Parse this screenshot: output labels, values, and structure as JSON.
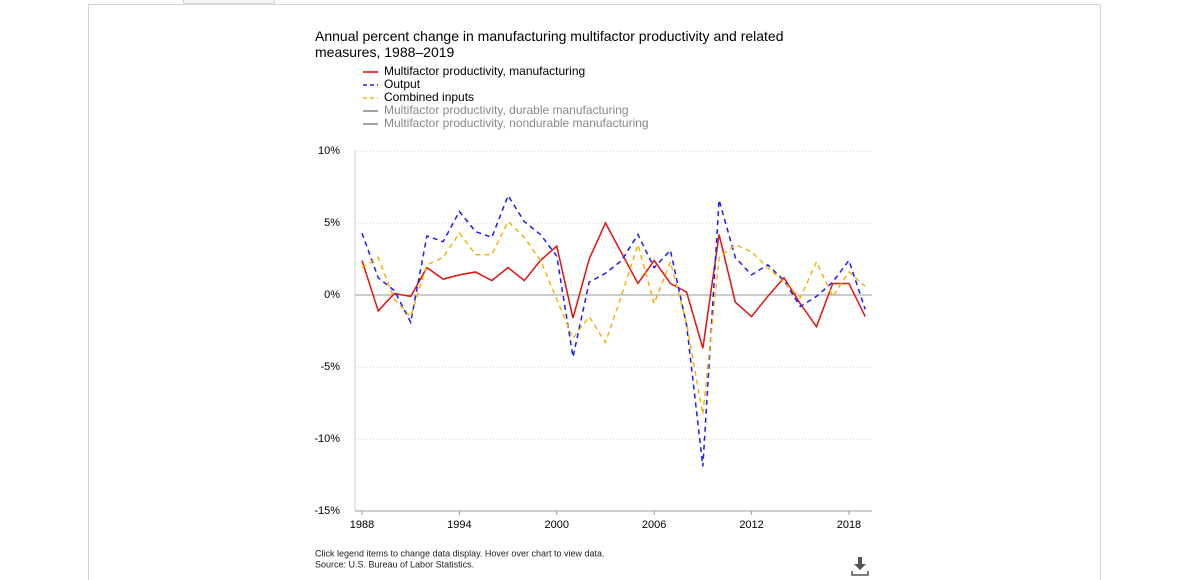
{
  "chart_data": {
    "type": "line",
    "title": "Annual percent change in manufacturing multifactor productivity and related measures, 1988–2019",
    "x": [
      1988,
      1989,
      1990,
      1991,
      1992,
      1993,
      1994,
      1995,
      1996,
      1997,
      1998,
      1999,
      2000,
      2001,
      2002,
      2003,
      2004,
      2005,
      2006,
      2007,
      2008,
      2009,
      2010,
      2011,
      2012,
      2013,
      2014,
      2015,
      2016,
      2017,
      2018,
      2019
    ],
    "series": [
      {
        "name": "Multifactor productivity, manufacturing",
        "color": "#e3120b",
        "dashed": false,
        "visible": true,
        "values": [
          2.4,
          -1.1,
          0.1,
          -0.1,
          1.9,
          1.1,
          1.4,
          1.6,
          1.0,
          1.9,
          1.0,
          2.4,
          3.4,
          -1.6,
          2.5,
          5.0,
          2.9,
          0.8,
          2.4,
          0.8,
          0.2,
          -3.7,
          4.2,
          -0.5,
          -1.5,
          -0.1,
          1.2,
          -0.6,
          -2.2,
          0.8,
          0.8,
          -1.5
        ]
      },
      {
        "name": "Output",
        "color": "#1a1aff",
        "dashed": true,
        "visible": true,
        "values": [
          4.3,
          1.2,
          0.3,
          -1.9,
          4.1,
          3.7,
          5.8,
          4.4,
          4.0,
          6.9,
          5.1,
          4.2,
          2.7,
          -4.3,
          0.9,
          1.5,
          2.4,
          4.2,
          1.9,
          3.1,
          -2.1,
          -11.9,
          6.6,
          2.6,
          1.4,
          2.1,
          1.0,
          -0.8,
          -0.1,
          0.9,
          2.4,
          -1.0
        ]
      },
      {
        "name": "Combined inputs",
        "color": "#f5b20a",
        "dashed": true,
        "visible": true,
        "values": [
          1.9,
          2.6,
          -0.3,
          -1.5,
          2.1,
          2.6,
          4.3,
          2.8,
          2.8,
          5.1,
          4.0,
          2.4,
          -0.3,
          -3.0,
          -1.5,
          -3.3,
          0.0,
          3.5,
          -0.6,
          2.3,
          -2.0,
          -8.3,
          2.6,
          3.5,
          3.0,
          1.9,
          0.9,
          -0.2,
          2.3,
          -0.1,
          1.6,
          0.6
        ]
      },
      {
        "name": "Multifactor productivity, durable manufacturing",
        "color": "#8c8c8c",
        "dashed": false,
        "visible": false
      },
      {
        "name": "Multifactor productivity, nondurable manufacturing",
        "color": "#8c8c8c",
        "dashed": false,
        "visible": false
      }
    ],
    "xlim": [
      1987.57,
      2019.42
    ],
    "xticks": [
      1988,
      1994,
      2000,
      2006,
      2012,
      2018
    ],
    "ylim": [
      -15,
      10
    ],
    "yticks": [
      {
        "value": -15,
        "label": "-15%"
      },
      {
        "value": -10,
        "label": "-10%"
      },
      {
        "value": -5,
        "label": "-5%"
      },
      {
        "value": 0,
        "label": "0%"
      },
      {
        "value": 5,
        "label": "5%"
      },
      {
        "value": 10,
        "label": "10%"
      }
    ],
    "grid": true,
    "notes": [
      "Click legend items to change data display. Hover over chart to view data.",
      "Source: U.S. Bureau of Labor Statistics."
    ]
  }
}
